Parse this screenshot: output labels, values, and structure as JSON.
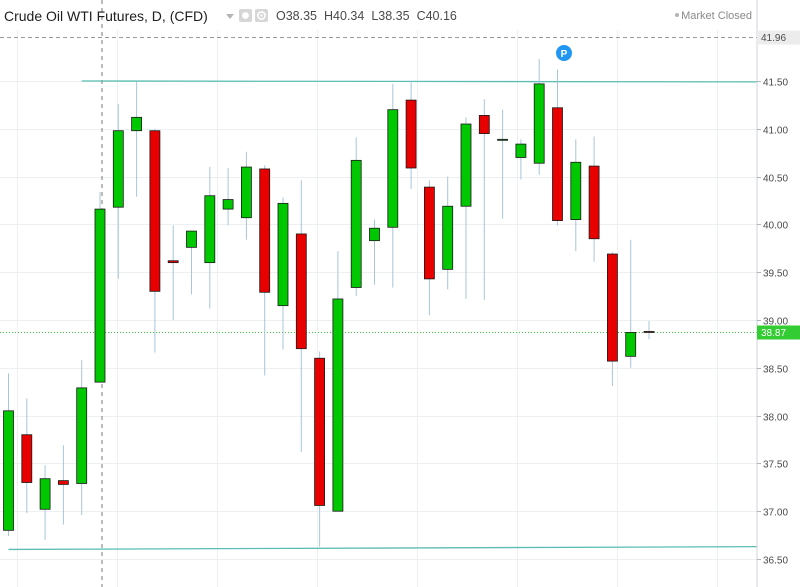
{
  "header": {
    "title": "Crude Oil WTI Futures, D, (CFD)",
    "ohlc": [
      {
        "label": "O",
        "value": "38.35"
      },
      {
        "label": "H",
        "value": "40.34"
      },
      {
        "label": "L",
        "value": "38.35"
      },
      {
        "label": "C",
        "value": "40.16"
      }
    ],
    "status": "Market Closed",
    "marker_label": "P"
  },
  "colors": {
    "up": "#00c800",
    "down": "#e80000",
    "wick": "#a9c4d8",
    "trendline": "#5bbdb4",
    "last_price": "#33cc33",
    "grid": "#edf0f3",
    "marker": "#2196f3"
  },
  "chart_data": {
    "type": "candlestick",
    "y_range": [
      36.3,
      42.1
    ],
    "y_ticks": [
      "36.50",
      "37.00",
      "37.50",
      "38.00",
      "38.50",
      "39.00",
      "39.50",
      "40.00",
      "40.50",
      "41.00",
      "41.50"
    ],
    "high_line": {
      "value": 41.96,
      "label": "41.96"
    },
    "last_price": {
      "value": 38.87,
      "label": "38.87"
    },
    "trendlines": [
      {
        "name": "resistance",
        "from": [
          4,
          41.5
        ],
        "to": [
          44,
          41.49
        ]
      },
      {
        "name": "support",
        "from": [
          0,
          36.6
        ],
        "to": [
          42,
          36.63
        ]
      }
    ],
    "candles": [
      {
        "o": 36.8,
        "h": 38.44,
        "l": 36.74,
        "c": 38.05
      },
      {
        "o": 37.8,
        "h": 38.18,
        "l": 36.98,
        "c": 37.3
      },
      {
        "o": 37.02,
        "h": 37.48,
        "l": 36.7,
        "c": 37.34
      },
      {
        "o": 37.32,
        "h": 37.69,
        "l": 36.86,
        "c": 37.28
      },
      {
        "o": 37.29,
        "h": 38.58,
        "l": 36.96,
        "c": 38.29
      },
      {
        "o": 38.35,
        "h": 40.34,
        "l": 38.35,
        "c": 40.16
      },
      {
        "o": 40.18,
        "h": 41.26,
        "l": 39.43,
        "c": 40.98
      },
      {
        "o": 40.98,
        "h": 41.49,
        "l": 40.29,
        "c": 41.12
      },
      {
        "o": 40.98,
        "h": 41.0,
        "l": 38.66,
        "c": 39.3
      },
      {
        "o": 39.62,
        "h": 39.99,
        "l": 39.0,
        "c": 39.6
      },
      {
        "o": 39.76,
        "h": 39.92,
        "l": 39.27,
        "c": 39.93
      },
      {
        "o": 39.6,
        "h": 40.6,
        "l": 39.12,
        "c": 40.3
      },
      {
        "o": 40.16,
        "h": 40.59,
        "l": 39.99,
        "c": 40.26
      },
      {
        "o": 40.07,
        "h": 40.76,
        "l": 39.84,
        "c": 40.6
      },
      {
        "o": 40.58,
        "h": 40.62,
        "l": 38.42,
        "c": 39.29
      },
      {
        "o": 39.15,
        "h": 40.28,
        "l": 38.69,
        "c": 40.22
      },
      {
        "o": 39.9,
        "h": 40.46,
        "l": 37.62,
        "c": 38.7
      },
      {
        "o": 38.6,
        "h": 38.67,
        "l": 36.63,
        "c": 37.06
      },
      {
        "o": 37.0,
        "h": 39.72,
        "l": 37.0,
        "c": 39.22
      },
      {
        "o": 39.34,
        "h": 40.91,
        "l": 39.25,
        "c": 40.67
      },
      {
        "o": 39.83,
        "h": 40.05,
        "l": 39.37,
        "c": 39.96
      },
      {
        "o": 39.97,
        "h": 41.47,
        "l": 39.34,
        "c": 41.2
      },
      {
        "o": 41.3,
        "h": 41.5,
        "l": 40.37,
        "c": 40.59
      },
      {
        "o": 40.39,
        "h": 40.46,
        "l": 39.05,
        "c": 39.43
      },
      {
        "o": 39.53,
        "h": 40.5,
        "l": 39.32,
        "c": 40.19
      },
      {
        "o": 40.19,
        "h": 41.12,
        "l": 39.22,
        "c": 41.05
      },
      {
        "o": 41.14,
        "h": 41.31,
        "l": 39.21,
        "c": 40.95
      },
      {
        "o": 40.88,
        "h": 41.2,
        "l": 40.06,
        "c": 40.89
      },
      {
        "o": 40.7,
        "h": 40.89,
        "l": 40.47,
        "c": 40.84
      },
      {
        "o": 40.64,
        "h": 41.73,
        "l": 40.52,
        "c": 41.47
      },
      {
        "o": 41.22,
        "h": 41.62,
        "l": 39.99,
        "c": 40.04
      },
      {
        "o": 40.05,
        "h": 40.89,
        "l": 39.72,
        "c": 40.65
      },
      {
        "o": 40.61,
        "h": 40.92,
        "l": 39.61,
        "c": 39.85
      },
      {
        "o": 39.69,
        "h": 39.71,
        "l": 38.31,
        "c": 38.57
      },
      {
        "o": 38.62,
        "h": 39.84,
        "l": 38.5,
        "c": 38.87
      },
      {
        "o": 38.88,
        "h": 38.99,
        "l": 38.8,
        "c": 38.87
      }
    ]
  }
}
